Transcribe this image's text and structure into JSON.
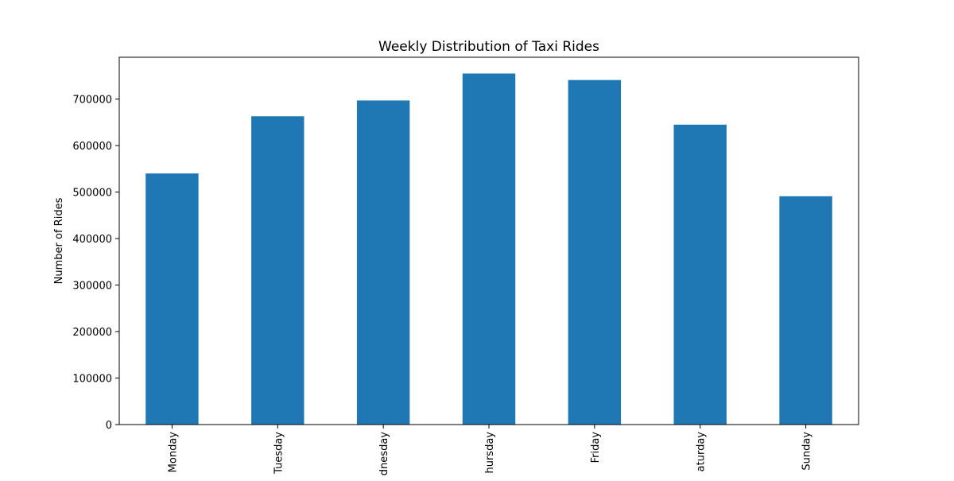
{
  "chart_data": {
    "type": "bar",
    "title": "Weekly Distribution of Taxi Rides",
    "xlabel": "",
    "ylabel": "Number of Rides",
    "categories": [
      "Monday",
      "Tuesday",
      "Wednesday",
      "Thursday",
      "Friday",
      "Saturday",
      "Sunday"
    ],
    "category_labels_visible": [
      "Monday",
      "Tuesday",
      "dnesday",
      "hursday",
      "Friday",
      "aturday",
      "Sunday"
    ],
    "values": [
      540000,
      663000,
      697000,
      755000,
      741000,
      645000,
      491000
    ],
    "ylim": [
      0,
      790000
    ],
    "yticks": [
      0,
      100000,
      200000,
      300000,
      400000,
      500000,
      600000,
      700000
    ],
    "ytick_labels": [
      "0",
      "100000",
      "200000",
      "300000",
      "400000",
      "500000",
      "600000",
      "700000"
    ],
    "bar_color": "#1f77b4",
    "grid": false,
    "legend": "none"
  }
}
